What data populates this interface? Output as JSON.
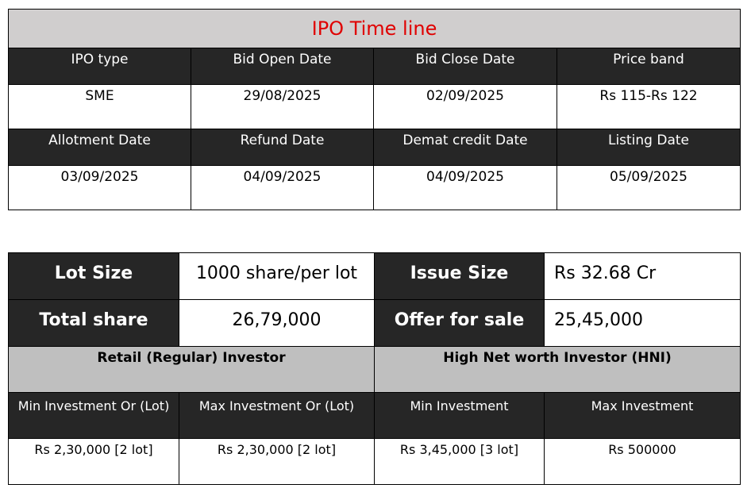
{
  "timeline": {
    "title": "IPO Time line",
    "row1_headers": [
      "IPO type",
      "Bid Open Date",
      "Bid Close Date",
      "Price band"
    ],
    "row1_values": [
      "SME",
      "29/08/2025",
      "02/09/2025",
      "Rs 115-Rs 122"
    ],
    "row2_headers": [
      "Allotment Date",
      "Refund Date",
      "Demat credit Date",
      "Listing Date"
    ],
    "row2_values": [
      "03/09/2025",
      "04/09/2025",
      "04/09/2025",
      "05/09/2025"
    ]
  },
  "issue": {
    "lot_size_label": "Lot Size",
    "lot_size_value": "1000 share/per lot",
    "issue_size_label": "Issue Size",
    "issue_size_value": "Rs 32.68 Cr",
    "total_share_label": "Total share",
    "total_share_value": "26,79,000",
    "offer_for_sale_label": "Offer for sale",
    "offer_for_sale_value": "25,45,000",
    "retail_label": "Retail (Regular) Investor",
    "hni_label": "High Net worth Investor (HNI)",
    "invest_headers": [
      "Min Investment Or (Lot)",
      "Max Investment Or (Lot)",
      "Min Investment",
      "Max Investment"
    ],
    "invest_values": [
      "Rs 2,30,000 [2 lot]",
      "Rs 2,30,000 [2 lot]",
      "Rs 3,45,000 [3 lot]",
      "Rs 500000"
    ]
  }
}
